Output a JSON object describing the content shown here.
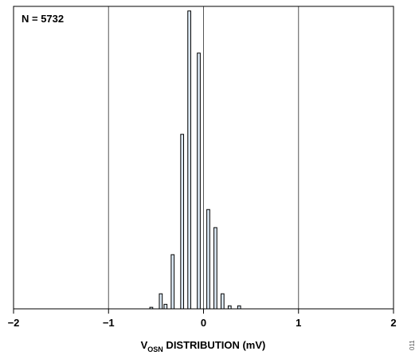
{
  "chart_data": {
    "type": "bar",
    "annotation": "N = 5732",
    "xlabel": {
      "main": "V",
      "subscript": "OSN",
      "rest": " DISTRIBUTION (mV)"
    },
    "xlim": [
      -2,
      2
    ],
    "x_ticks": [
      -2,
      -1,
      0,
      1,
      2
    ],
    "x_tick_labels": [
      "−2",
      "−1",
      "0",
      "1",
      "2"
    ],
    "vertical_gridlines": [
      -1,
      0,
      1
    ],
    "grid": true,
    "ylim": [
      0,
      100
    ],
    "bin_width": 0.05,
    "bars": [
      {
        "x": -0.55,
        "value": 0.5
      },
      {
        "x": -0.45,
        "value": 5
      },
      {
        "x": -0.4,
        "value": 1.5
      },
      {
        "x": -0.325,
        "value": 18
      },
      {
        "x": -0.225,
        "value": 58
      },
      {
        "x": -0.15,
        "value": 99
      },
      {
        "x": -0.05,
        "value": 85
      },
      {
        "x": 0.05,
        "value": 33
      },
      {
        "x": 0.125,
        "value": 27
      },
      {
        "x": 0.2,
        "value": 5
      },
      {
        "x": 0.275,
        "value": 1
      },
      {
        "x": 0.375,
        "value": 1
      }
    ],
    "bar_fill": "#dce9f5",
    "bar_stroke": "#000000"
  },
  "figure_id": "011"
}
